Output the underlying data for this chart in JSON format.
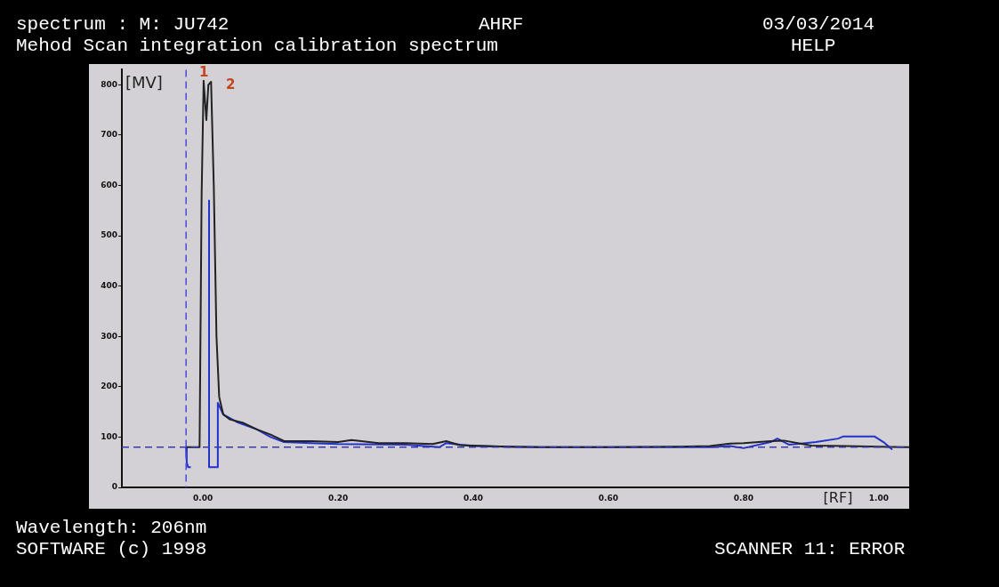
{
  "chart_data": {
    "type": "line",
    "annotations": [
      "spectrum : M: JU742",
      "AHRF",
      "03/03/2014",
      "Mehod Scan integration calibration spectrum",
      "HELP",
      "Wavelength: 206nm",
      "SOFTWARE (c) 1998",
      "SCANNER 11: ERROR",
      "1",
      "2"
    ],
    "xlabel": "[RF]",
    "ylabel": "[MV]",
    "xlim": [
      -0.12,
      1.045
    ],
    "ylim": [
      0,
      830
    ],
    "xticks": [
      {
        "value": 0,
        "label": "0.00"
      },
      {
        "value": 0.2,
        "label": "0.20"
      },
      {
        "value": 0.4,
        "label": "0.40"
      },
      {
        "value": 0.6,
        "label": "0.60"
      },
      {
        "value": 0.8,
        "label": "0.80"
      },
      {
        "value": 1,
        "label": "1.00"
      }
    ],
    "yticks": [
      0,
      100,
      200,
      300,
      400,
      500,
      600,
      700,
      800
    ],
    "grid": false,
    "legend": false,
    "marker": "none",
    "line_style": "solid",
    "ref_lines": [
      {
        "axis": "y",
        "value": 80,
        "color": "#3a3aa8",
        "line_style": "dashed"
      },
      {
        "axis": "x",
        "value": -0.025,
        "color": "#4a4ad8",
        "line_style": "dashed"
      }
    ],
    "series": [
      {
        "color": "#222222",
        "x": [
          -0.025,
          -0.005,
          -0.002,
          0.001,
          0.005,
          0.008,
          0.012,
          0.016,
          0.02,
          0.024,
          0.03,
          0.04,
          0.06,
          0.08,
          0.1,
          0.12,
          0.16,
          0.2,
          0.22,
          0.26,
          0.3,
          0.34,
          0.36,
          0.38,
          0.4,
          0.45,
          0.5,
          0.6,
          0.7,
          0.75,
          0.78,
          0.8,
          0.84,
          0.86,
          0.9,
          0.95,
          1.0,
          1.045
        ],
        "values": [
          80,
          80,
          580,
          808,
          730,
          800,
          806,
          600,
          300,
          180,
          145,
          135,
          128,
          115,
          105,
          92,
          92,
          90,
          94,
          88,
          88,
          86,
          92,
          84,
          83,
          81,
          80,
          80,
          81,
          82,
          87,
          88,
          92,
          93,
          83,
          82,
          81,
          80
        ]
      },
      {
        "color": "#2233cc",
        "x": [
          -0.025,
          -0.024,
          -0.022,
          -0.018
        ],
        "values": [
          80,
          50,
          40,
          40
        ]
      },
      {
        "color": "#2233cc",
        "x": [
          0.009,
          0.009,
          0.022,
          0.022,
          0.03,
          0.05,
          0.08,
          0.1,
          0.12,
          0.16,
          0.2,
          0.3,
          0.35,
          0.36,
          0.4,
          0.45,
          0.5,
          0.6,
          0.75,
          0.78,
          0.8,
          0.84,
          0.85,
          0.867,
          0.885,
          0.907,
          0.94,
          0.947,
          0.994,
          1.007,
          1.02
        ],
        "values": [
          570,
          40,
          40,
          168,
          145,
          130,
          115,
          100,
          90,
          88,
          86,
          85,
          80,
          88,
          82,
          81,
          80,
          80,
          80,
          82,
          78,
          90,
          97,
          85,
          87,
          90,
          97,
          101,
          101,
          90,
          75
        ]
      }
    ]
  }
}
